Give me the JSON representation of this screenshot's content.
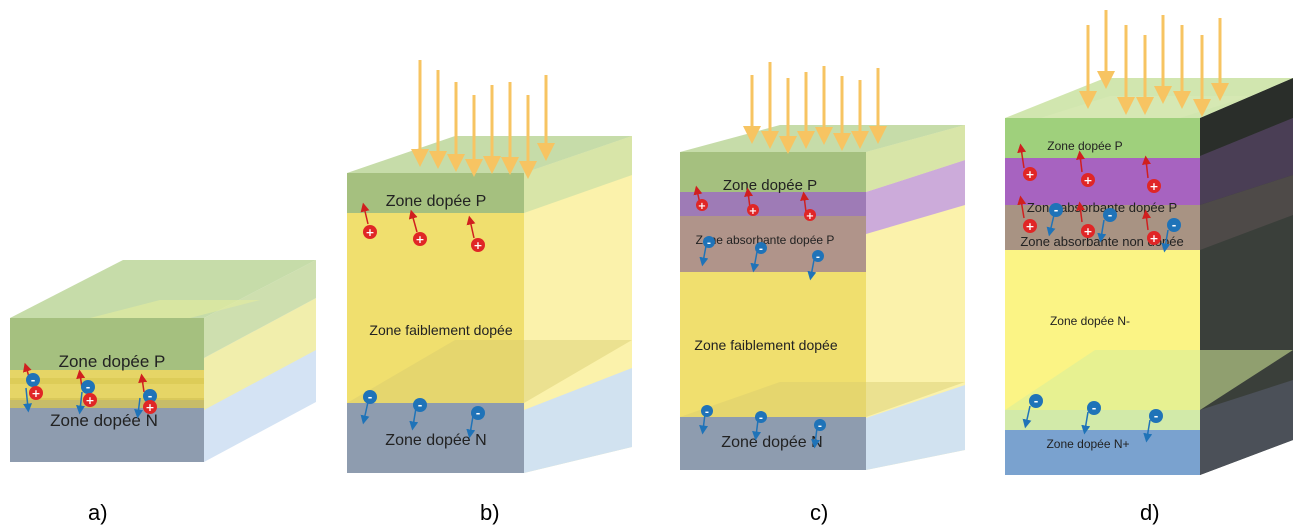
{
  "panels": {
    "a": {
      "caption": "a)",
      "zone_p": "Zone dopée P",
      "zone_n": "Zone dopée N"
    },
    "b": {
      "caption": "b)",
      "zone_p": "Zone dopée P",
      "zone_mid": "Zone faiblement dopée",
      "zone_n": "Zone dopée N"
    },
    "c": {
      "caption": "c)",
      "zone_p": "Zone dopée P",
      "zone_abs": "Zone absorbante dopée P",
      "zone_mid": "Zone faiblement dopée",
      "zone_n": "Zone dopée N"
    },
    "d": {
      "caption": "d)",
      "zone_p": "Zone dopée P",
      "zone_abs_p": "Zone absorbante dopée P",
      "zone_abs_nd": "Zone absorbante non dopée",
      "zone_nminus": "Zone dopée N-",
      "zone_nplus": "Zone dopée N+"
    }
  },
  "carriers": {
    "hole": "+",
    "electron": "-"
  },
  "colors": {
    "p_zone": "#b5cf8f",
    "n_zone": "#8f9eb0",
    "n_side": "#cfe0f3",
    "mid_zone": "#f2e37a",
    "absorb_p": "#a27db8",
    "absorb_nd": "#a49076",
    "hole": "#e02626",
    "electron": "#1f73b8",
    "light_arrow": "#f7c462",
    "dark_side": "#3a3f3a"
  }
}
